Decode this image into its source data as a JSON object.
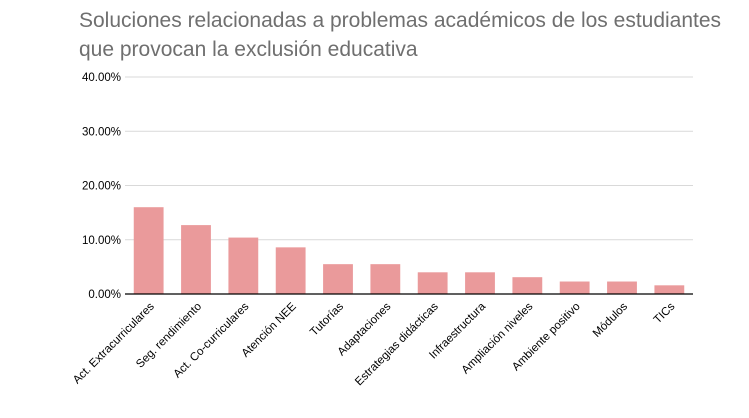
{
  "chart_data": {
    "type": "bar",
    "title_line1": "Soluciones relacionadas a problemas académicos de los estudiantes",
    "title_line2": "que provocan la exclusión educativa",
    "xlabel": "",
    "ylabel": "",
    "categories": [
      "Act. Extracurriculares",
      "Seg. rendimiento",
      "Act. Co-curriculares",
      "Atención NEE",
      "Tutorías",
      "Adaptaciones",
      "Estrategias didácticas",
      "Infraestructura",
      "Ampliación niveles",
      "Ambiente positivo",
      "Módulos",
      "TICs"
    ],
    "values": [
      16.0,
      12.7,
      10.4,
      8.6,
      5.5,
      5.5,
      4.0,
      4.0,
      3.1,
      2.3,
      2.3,
      1.6
    ],
    "ylim": [
      0,
      40
    ],
    "yticks": [
      0,
      10,
      20,
      30,
      40
    ],
    "ytick_labels": [
      "0.00%",
      "10.00%",
      "20.00%",
      "30.00%",
      "40.00%"
    ],
    "grid": true,
    "legend": "none",
    "bar_color": "#ea9a9b",
    "grid_color": "#d9d9d9",
    "axis_color": "#000000"
  }
}
